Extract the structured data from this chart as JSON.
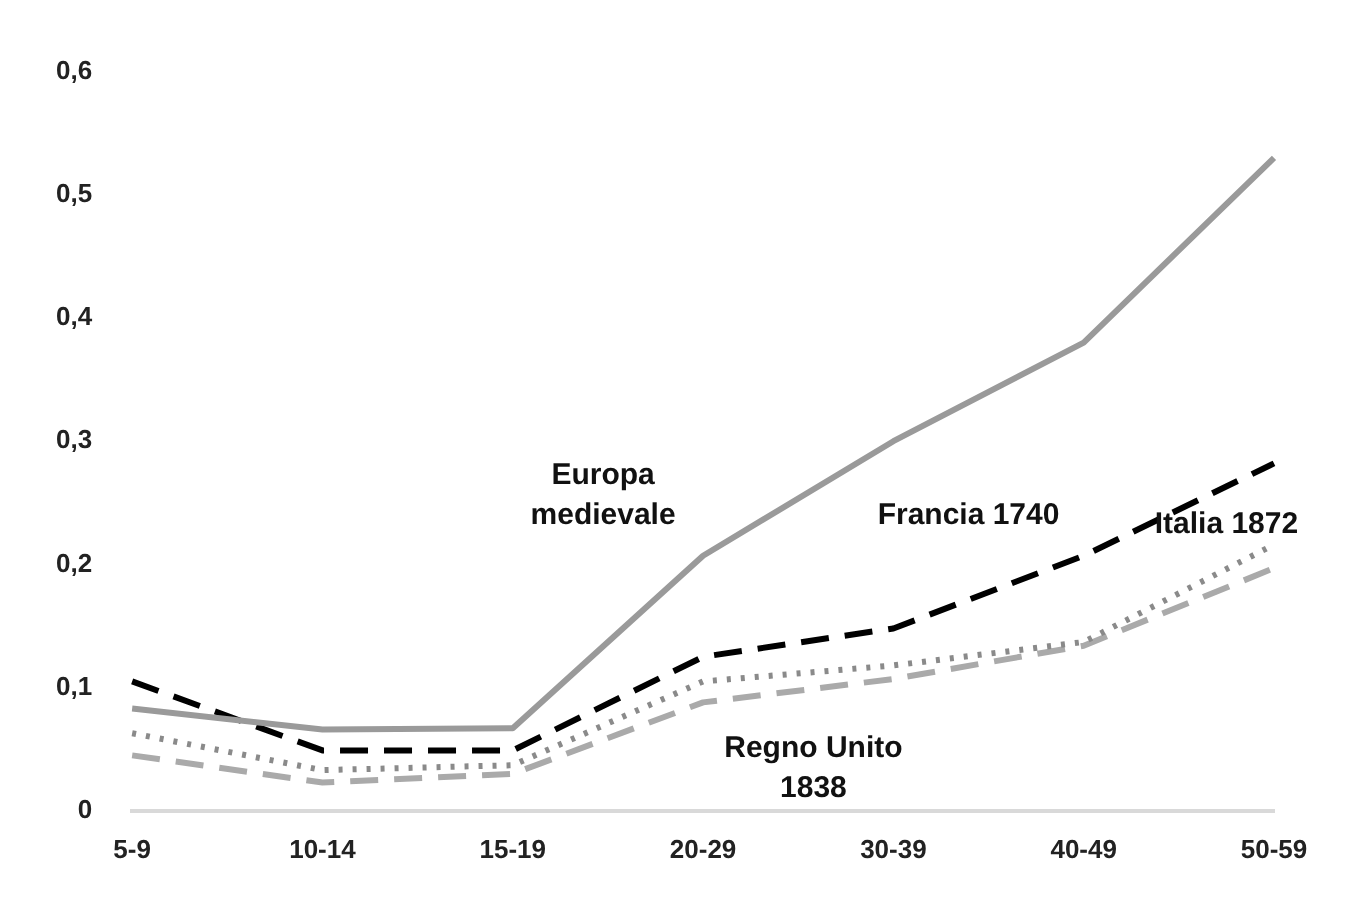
{
  "chart_data": {
    "type": "line",
    "categories": [
      "5-9",
      "10-14",
      "15-19",
      "20-29",
      "30-39",
      "40-49",
      "50-59"
    ],
    "series": [
      {
        "name": "Europa medievale",
        "color": "#9a9a9a",
        "line_style": "solid",
        "values": [
          0.083,
          0.066,
          0.067,
          0.207,
          0.3,
          0.38,
          0.53
        ]
      },
      {
        "name": "Francia 1740",
        "color": "#000000",
        "line_style": "dashed",
        "values": [
          0.105,
          0.049,
          0.049,
          0.125,
          0.148,
          0.207,
          0.282
        ]
      },
      {
        "name": "Italia 1872",
        "color": "#8a8a8a",
        "line_style": "dotted",
        "values": [
          0.063,
          0.033,
          0.037,
          0.105,
          0.118,
          0.137,
          0.216
        ]
      },
      {
        "name": "Regno Unito 1838",
        "color": "#aaaaaa",
        "line_style": "dashed",
        "values": [
          0.045,
          0.023,
          0.03,
          0.088,
          0.107,
          0.134,
          0.197
        ]
      }
    ],
    "ylim": [
      0,
      0.6
    ],
    "yticks": [
      0,
      {
        "value": 0.1,
        "label": "0,1"
      },
      {
        "value": 0.2,
        "label": "0,2"
      },
      {
        "value": 0.3,
        "label": "0,3"
      },
      {
        "value": 0.4,
        "label": "0,4"
      },
      {
        "value": 0.5,
        "label": "0,5"
      },
      {
        "value": 0.6,
        "label": "0,6"
      }
    ],
    "grid": false,
    "legend": false,
    "marker": "none"
  }
}
